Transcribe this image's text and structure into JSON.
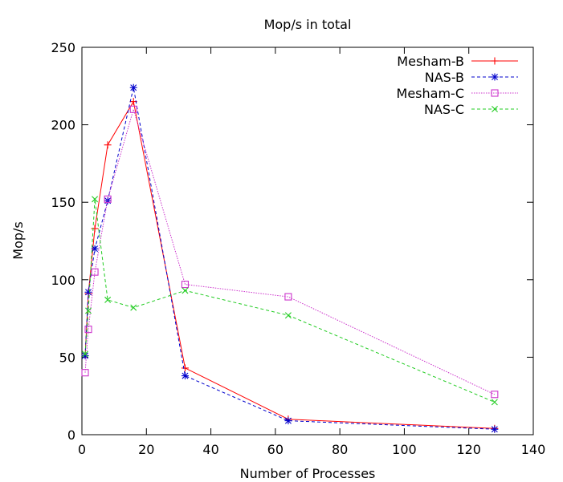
{
  "chart_data": {
    "type": "line",
    "title": "Mop/s in total",
    "xlabel": "Number of Processes",
    "ylabel": "Mop/s",
    "xlim": [
      0,
      140
    ],
    "ylim": [
      0,
      250
    ],
    "xticks": [
      0,
      20,
      40,
      60,
      80,
      100,
      120,
      140
    ],
    "yticks": [
      0,
      50,
      100,
      150,
      200,
      250
    ],
    "grid": false,
    "legend": "top-right",
    "series": [
      {
        "name": "Mesham-B",
        "color": "#ff0000",
        "dash": "solid",
        "marker": "plus",
        "x": [
          1,
          2,
          4,
          8,
          16,
          32,
          64,
          128
        ],
        "y": [
          51,
          91,
          133,
          187,
          215,
          43,
          10,
          4
        ]
      },
      {
        "name": "NAS-B",
        "color": "#0000cc",
        "dash": "dashed",
        "marker": "star",
        "x": [
          1,
          2,
          4,
          8,
          16,
          32,
          64,
          128
        ],
        "y": [
          51,
          92,
          120,
          151,
          224,
          38,
          9,
          3.5
        ]
      },
      {
        "name": "Mesham-C",
        "color": "#cc33cc",
        "dash": "dotted",
        "marker": "square",
        "x": [
          1,
          2,
          4,
          8,
          16,
          32,
          64,
          128
        ],
        "y": [
          40,
          68,
          105,
          152,
          210,
          97,
          89,
          26
        ]
      },
      {
        "name": "NAS-C",
        "color": "#22cc22",
        "dash": "dashed",
        "marker": "cross",
        "x": [
          1,
          2,
          4,
          8,
          16,
          32,
          64,
          128
        ],
        "y": [
          52,
          80,
          152,
          87,
          82,
          93,
          77,
          21
        ]
      }
    ]
  }
}
